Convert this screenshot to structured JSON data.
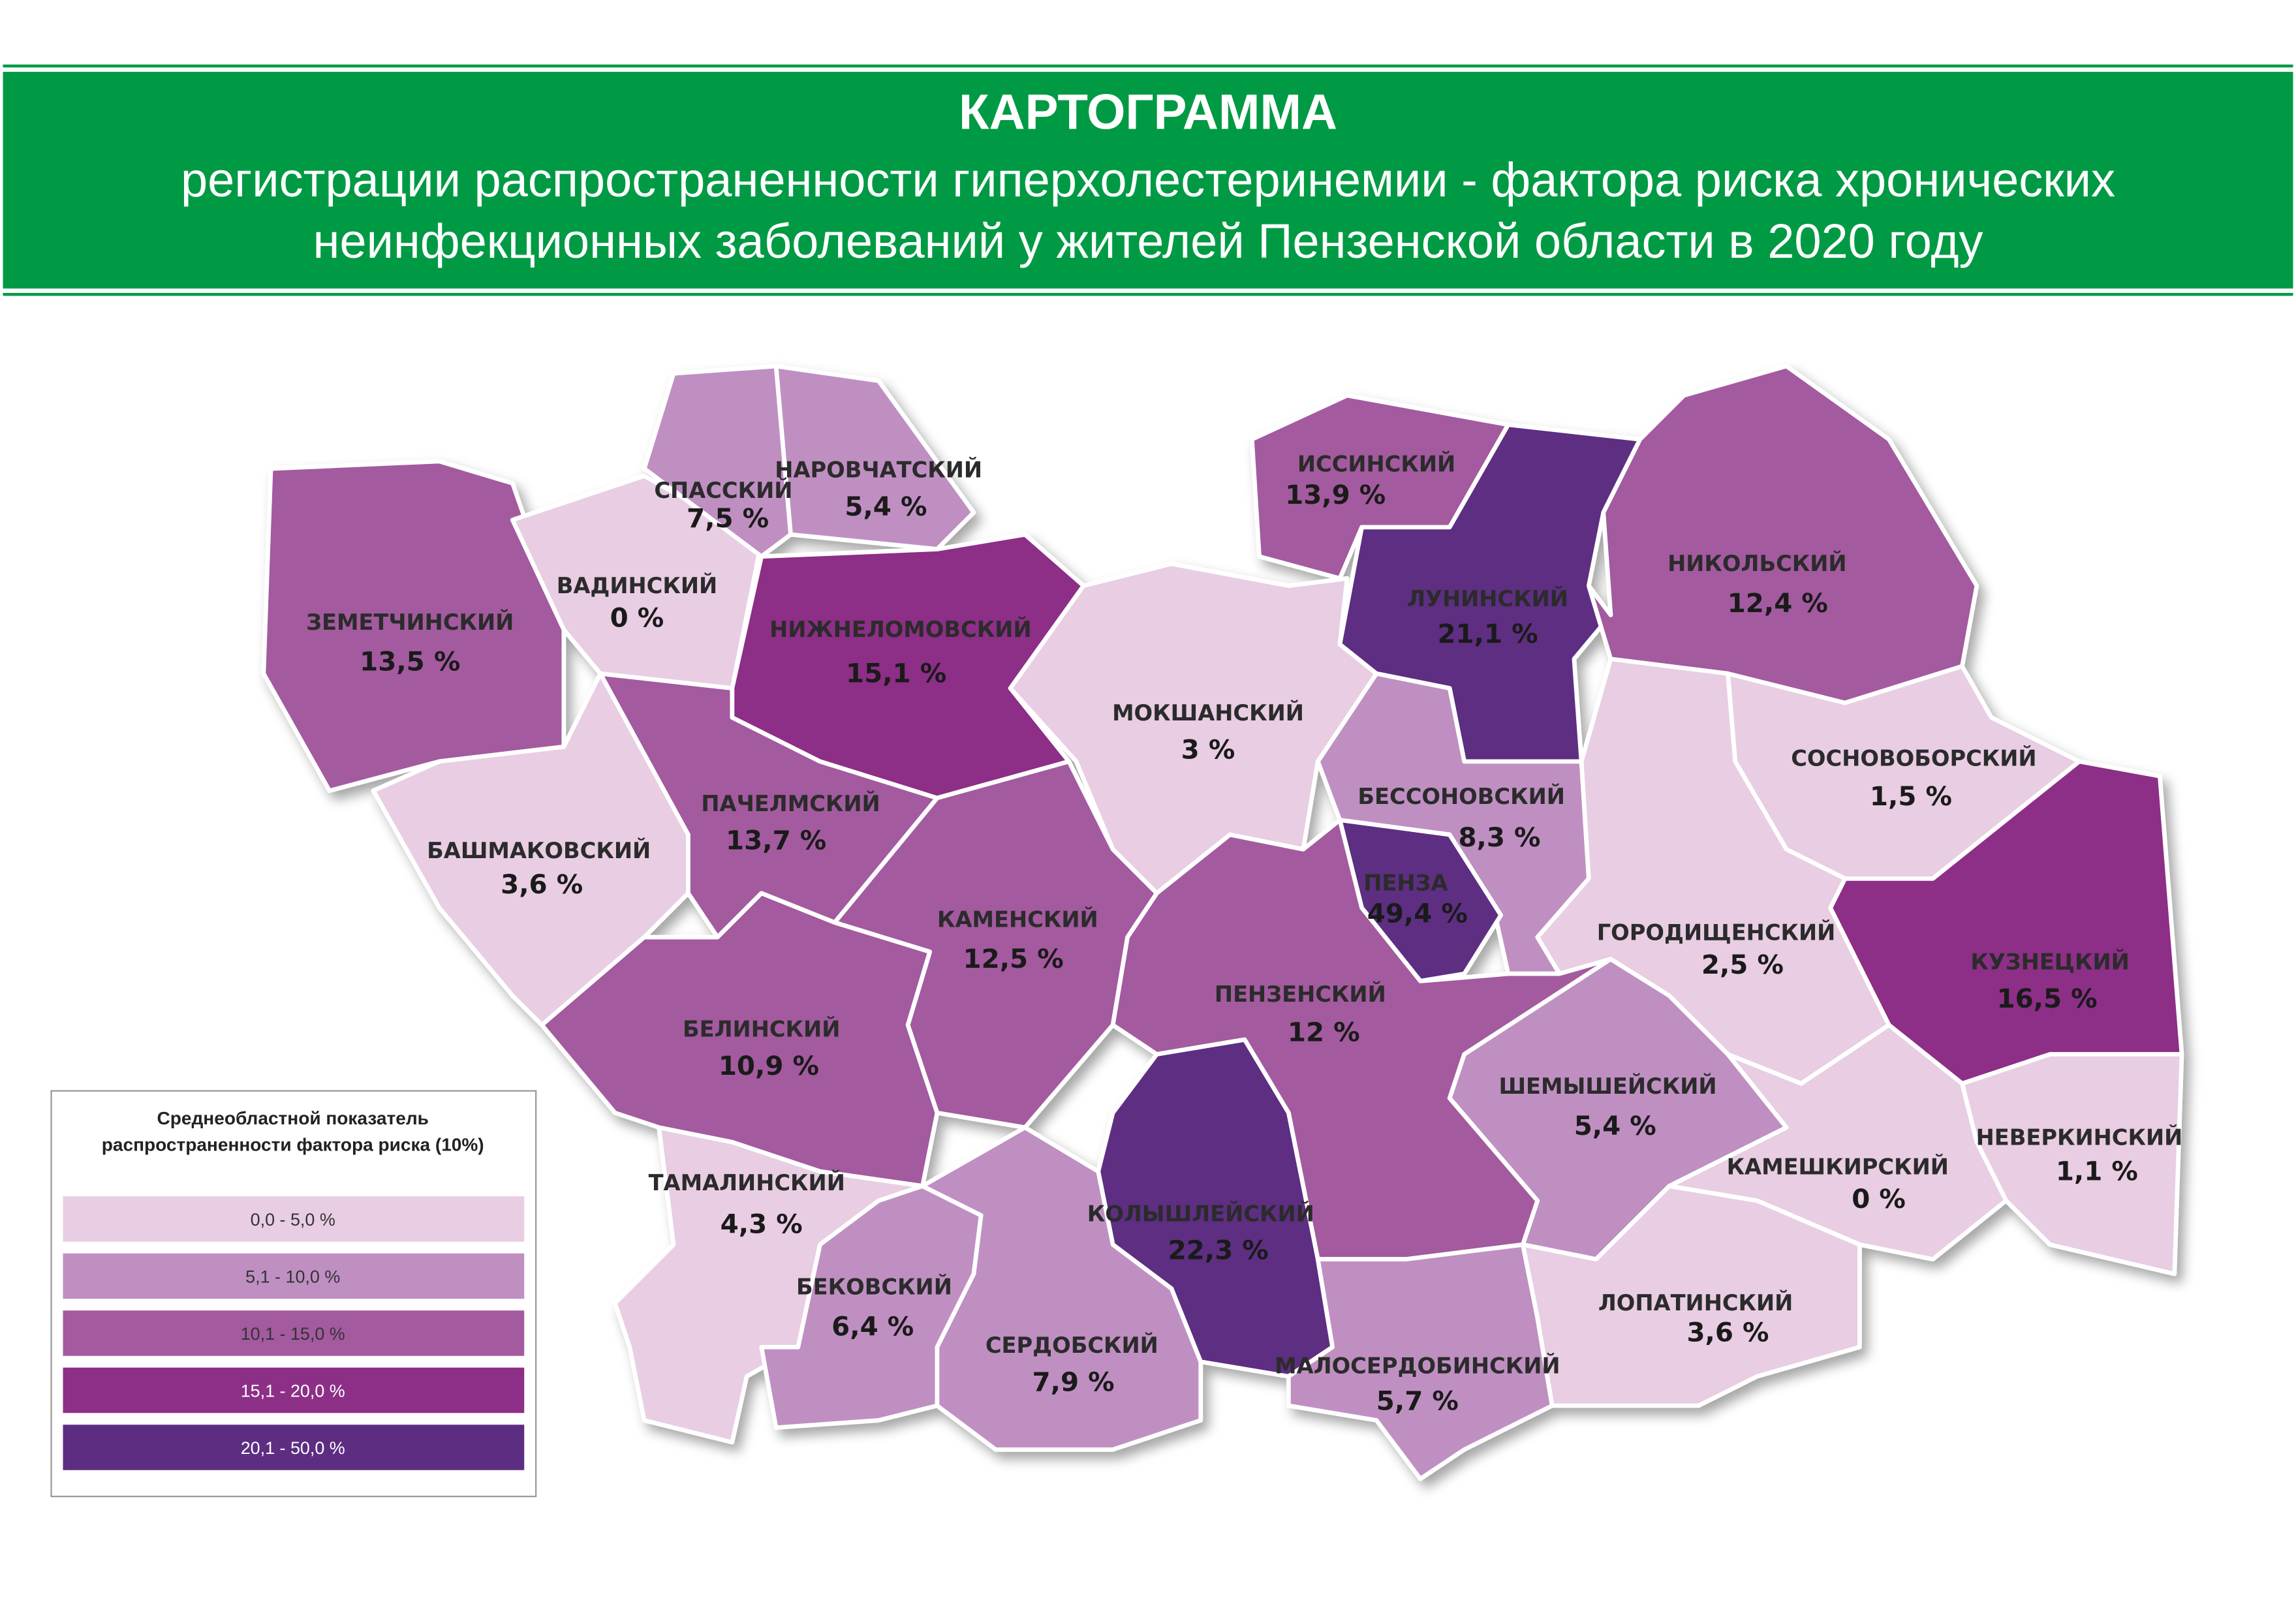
{
  "header": {
    "title": "КАРТОГРАММА",
    "subtitle": [
      "регистрации распространенности гиперхолестеринемии - фактора риска хронических",
      "неинфекционных заболеваний у жителей Пензенской области в 2020 году"
    ]
  },
  "districts": [
    {
      "name": "ЗЕМЕТЧИНСКИЙ",
      "value": "13,5 %",
      "color": "#a35a9f"
    },
    {
      "name": "ВАДИНСКИЙ",
      "value": "0 %",
      "color": "#e8cde3"
    },
    {
      "name": "СПАССКИЙ",
      "value": "7,5 %",
      "color": "#bf8fc2"
    },
    {
      "name": "НАРОВЧАТСКИЙ",
      "value": "5,4 %",
      "color": "#bf8fc2"
    },
    {
      "name": "НИЖНЕЛОМОВСКИЙ",
      "value": "15,1 %",
      "color": "#8d2f87"
    },
    {
      "name": "ИССИНСКИЙ",
      "value": "13,9 %",
      "color": "#a35a9f"
    },
    {
      "name": "ЛУНИНСКИЙ",
      "value": "21,1 %",
      "color": "#5d2d82"
    },
    {
      "name": "НИКОЛЬСКИЙ",
      "value": "12,4 %",
      "color": "#a35a9f"
    },
    {
      "name": "МОКШАНСКИЙ",
      "value": "3 %",
      "color": "#e8cde3"
    },
    {
      "name": "СОСНОВОБОРСКИЙ",
      "value": "1,5 %",
      "color": "#e8cde3"
    },
    {
      "name": "КУЗНЕЦКИЙ",
      "value": "16,5 %",
      "color": "#8d2f87"
    },
    {
      "name": "БЕССОНОВСКИЙ",
      "value": "8,3 %",
      "color": "#bf8fc2"
    },
    {
      "name": "ПЕНЗА",
      "value": "49,4 %",
      "color": "#5d2d82"
    },
    {
      "name": "ГОРОДИЩЕНСКИЙ",
      "value": "2,5 %",
      "color": "#e8cde3"
    },
    {
      "name": "БАШМАКОВСКИЙ",
      "value": "3,6 %",
      "color": "#e8cde3"
    },
    {
      "name": "ПАЧЕЛМСКИЙ",
      "value": "13,7 %",
      "color": "#a35a9f"
    },
    {
      "name": "КАМЕНСКИЙ",
      "value": "12,5 %",
      "color": "#a35a9f"
    },
    {
      "name": "БЕЛИНСКИЙ",
      "value": "10,9 %",
      "color": "#a35a9f"
    },
    {
      "name": "ПЕНЗЕНСКИЙ",
      "value": "12 %",
      "color": "#a35a9f"
    },
    {
      "name": "ШЕМЫШЕЙСКИЙ",
      "value": "5,4 %",
      "color": "#bf8fc2"
    },
    {
      "name": "НЕВЕРКИНСКИЙ",
      "value": "1,1 %",
      "color": "#e8cde3"
    },
    {
      "name": "КАМЕШКИРСКИЙ",
      "value": "0 %",
      "color": "#e8cde3"
    },
    {
      "name": "КОЛЫШЛЕЙСКИЙ",
      "value": "22,3 %",
      "color": "#5d2d82"
    },
    {
      "name": "ТАМАЛИНСКИЙ",
      "value": "4,3 %",
      "color": "#e8cde3"
    },
    {
      "name": "БЕКОВСКИЙ",
      "value": "6,4 %",
      "color": "#bf8fc2"
    },
    {
      "name": "СЕРДОБСКИЙ",
      "value": "7,9 %",
      "color": "#bf8fc2"
    },
    {
      "name": "МАЛОСЕРДОБИНСКИЙ",
      "value": "5,7 %",
      "color": "#bf8fc2"
    },
    {
      "name": "ЛОПАТИНСКИЙ",
      "value": "3,6 %",
      "color": "#e8cde3"
    }
  ],
  "legend": {
    "title": [
      "Среднеобластной показатель",
      "распространенности фактора риска (10%)"
    ],
    "items": [
      {
        "label": "0,0 - 5,0 %",
        "color": "#e8cde3"
      },
      {
        "label": "5,1 - 10,0 %",
        "color": "#bf8fc2"
      },
      {
        "label": "10,1 - 15,0 %",
        "color": "#a35a9f"
      },
      {
        "label": "15,1 - 20,0 %",
        "color": "#8d2f87"
      },
      {
        "label": "20,1 - 50,0 %",
        "color": "#5d2d82"
      }
    ]
  }
}
